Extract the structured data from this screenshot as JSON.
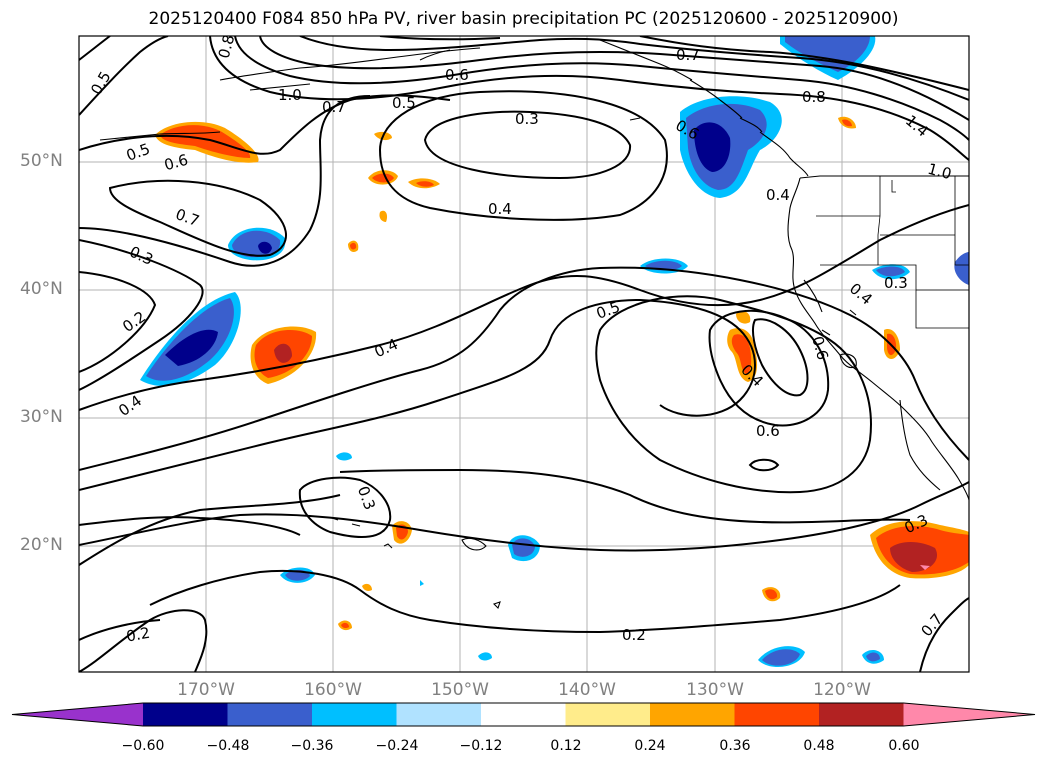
{
  "title": "2025120400 F084 850 hPa PV, river basin precipitation PC (2025120600 - 2025120900)",
  "lat_labels": [
    "50°N",
    "40°N",
    "30°N",
    "20°N"
  ],
  "lon_labels": [
    "170°W",
    "160°W",
    "150°W",
    "140°W",
    "130°W",
    "120°W"
  ],
  "contour_labels": [
    "0.8",
    "1.0",
    "0.7",
    "0.6",
    "0.5",
    "0.7",
    "0.5",
    "0.5",
    "0.6",
    "0.7",
    "0.3",
    "0.2",
    "0.4",
    "0.3",
    "0.4",
    "0.5",
    "0.4",
    "0.6",
    "0.6",
    "0.3",
    "0.2",
    "0.3",
    "0.2",
    "0.7",
    "0.8",
    "1.4",
    "1.0",
    "0.4",
    "0.3",
    "0.4",
    "0.6",
    "0.4"
  ],
  "colorbar": {
    "ticks": [
      "−0.60",
      "−0.48",
      "−0.36",
      "−0.24",
      "−0.12",
      "0.12",
      "0.24",
      "0.36",
      "0.48",
      "0.60"
    ],
    "colors": [
      "#9932cc",
      "#00008b",
      "#3a5fcd",
      "#00bfff",
      "#b0e2ff",
      "#ffffff",
      "#ffec8b",
      "#ffa500",
      "#ff4500",
      "#b22222",
      "#ff88aa"
    ]
  }
}
